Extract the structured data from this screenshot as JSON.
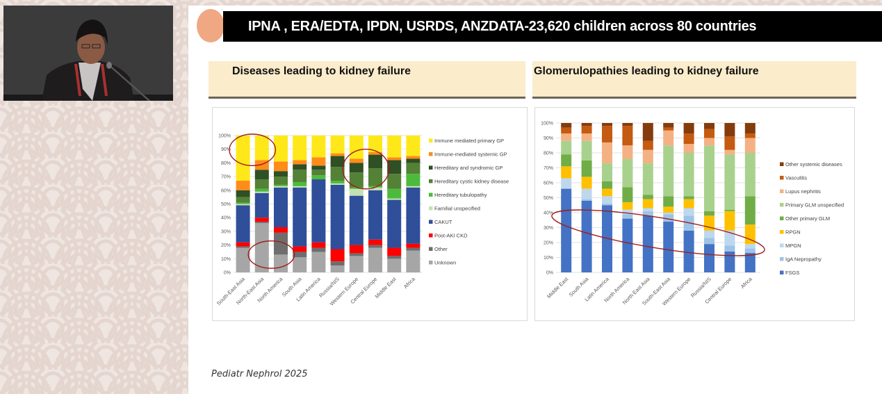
{
  "slide": {
    "title": "IPNA , ERA/EDTA, IPDN, USRDS, ANZDATA-23,620 children across 80  countries",
    "left_heading": "Diseases leading to kidney failure",
    "right_heading": "Glomerulopathies leading to kidney failure",
    "citation": "Pediatr Nephrol 2025"
  },
  "video_inset": {
    "description": "Speaker at podium with microphone"
  },
  "colors": {
    "title_bar": "#000000",
    "title_dot": "#f0a882",
    "subhead_bg": "#fbeccb",
    "annotation_ellipse": "#a01c1c"
  },
  "chart_data": [
    {
      "type": "bar",
      "stacked": true,
      "normalized": true,
      "title": "Diseases leading to kidney failure",
      "xlabel": "",
      "ylabel": "",
      "ylim": [
        0,
        100
      ],
      "yticks": [
        "0%",
        "10%",
        "20%",
        "30%",
        "40%",
        "50%",
        "60%",
        "70%",
        "80%",
        "90%",
        "100%"
      ],
      "grid": true,
      "legend_position": "right",
      "categories": [
        "South-East Asia",
        "North-East Asia",
        "North America",
        "South Asia",
        "Latin America",
        "Russia/NIS",
        "Western Europe",
        "Central Europe",
        "Middle East",
        "Africa"
      ],
      "series": [
        {
          "name": "Unknown",
          "color": "#a6a6a6",
          "values": [
            18,
            36,
            13,
            11,
            15,
            5,
            12,
            18,
            10,
            16
          ]
        },
        {
          "name": "Other",
          "color": "#6e6e6e",
          "values": [
            1,
            1,
            16,
            4,
            3,
            3,
            2,
            2,
            2,
            2
          ]
        },
        {
          "name": "Post-AKI CKD",
          "color": "#ff0000",
          "values": [
            3,
            3,
            4,
            4,
            4,
            9,
            6,
            4,
            6,
            3
          ]
        },
        {
          "name": "CAKUT",
          "color": "#2f4f9a",
          "values": [
            27,
            18,
            29,
            43,
            46,
            47,
            36,
            36,
            35,
            41
          ]
        },
        {
          "name": "Familial unspecified",
          "color": "#c5e0b4",
          "values": [
            1,
            1,
            1,
            1,
            0,
            1,
            5,
            2,
            1,
            1
          ]
        },
        {
          "name": "Hereditary tubulopathy",
          "color": "#4cbb3c",
          "values": [
            1,
            2,
            1,
            3,
            3,
            2,
            1,
            1,
            7,
            9
          ]
        },
        {
          "name": "Hereditary cystic kidney disease",
          "color": "#538135",
          "values": [
            4,
            7,
            6,
            9,
            4,
            10,
            11,
            13,
            11,
            8
          ]
        },
        {
          "name": "Hereditary and syndromic GP",
          "color": "#2f4f24",
          "values": [
            5,
            7,
            4,
            4,
            3,
            8,
            7,
            10,
            10,
            3
          ]
        },
        {
          "name": "Immune-mediated systemic GP",
          "color": "#ff8c1a",
          "values": [
            7,
            7,
            7,
            3,
            6,
            2,
            3,
            2,
            2,
            2
          ]
        },
        {
          "name": "Immune mediated primary  GP",
          "color": "#ffe81a",
          "values": [
            33,
            18,
            19,
            18,
            16,
            13,
            17,
            12,
            16,
            15
          ]
        }
      ],
      "annotations": [
        {
          "type": "ellipse",
          "around": [
            "South-East Asia",
            "North-East Asia"
          ],
          "range": [
            79,
            100
          ]
        },
        {
          "type": "ellipse",
          "around": [
            "North-East Asia",
            "North America"
          ],
          "range": [
            4,
            22
          ]
        },
        {
          "type": "ellipse",
          "around": [
            "Western Europe",
            "Central Europe"
          ],
          "range": [
            62,
            89
          ]
        }
      ]
    },
    {
      "type": "bar",
      "stacked": true,
      "normalized": true,
      "title": "Glomerulopathies leading to kidney failure",
      "xlabel": "",
      "ylabel": "",
      "ylim": [
        0,
        100
      ],
      "yticks": [
        "0%",
        "10%",
        "20%",
        "30%",
        "40%",
        "50%",
        "60%",
        "70%",
        "80%",
        "90%",
        "100%"
      ],
      "grid": true,
      "legend_position": "right",
      "categories": [
        "Middle East",
        "South Asia",
        "Latin America",
        "North America",
        "North East Asia",
        "South-East Asia",
        "Western Europe",
        "Russia/NIS",
        "Central Europe",
        "Africa"
      ],
      "series": [
        {
          "name": "FSGS",
          "color": "#4472c4",
          "values": [
            56,
            48,
            45,
            36,
            38,
            34,
            28,
            19,
            14,
            13
          ]
        },
        {
          "name": "IgA Nepropathy",
          "color": "#9dc3e6",
          "values": [
            0,
            1,
            1,
            3,
            3,
            5,
            10,
            4,
            4,
            3
          ]
        },
        {
          "name": "MPGN",
          "color": "#bdd7ee",
          "values": [
            7,
            7,
            5,
            3,
            2,
            1,
            5,
            5,
            10,
            3
          ]
        },
        {
          "name": "RPGN",
          "color": "#ffc000",
          "values": [
            8,
            8,
            5,
            5,
            6,
            4,
            6,
            10,
            13,
            13
          ]
        },
        {
          "name": "Other primary GLM",
          "color": "#70ad47",
          "values": [
            8,
            11,
            5,
            10,
            3,
            7,
            2,
            3,
            1,
            19
          ]
        },
        {
          "name": "Primary GLM unspecified",
          "color": "#a9d18e",
          "values": [
            9,
            13,
            12,
            19,
            21,
            34,
            29,
            44,
            37,
            29
          ]
        },
        {
          "name": "Lupus nephritis",
          "color": "#f4b183",
          "values": [
            5,
            5,
            14,
            9,
            9,
            10,
            6,
            5,
            3,
            10
          ]
        },
        {
          "name": "Vasculitis",
          "color": "#c55a11",
          "values": [
            4,
            5,
            11,
            13,
            6,
            2,
            7,
            6,
            9,
            3
          ]
        },
        {
          "name": "Other systemic diseases",
          "color": "#843c0c",
          "values": [
            3,
            2,
            2,
            2,
            12,
            3,
            7,
            4,
            9,
            7
          ]
        }
      ],
      "annotations": [
        {
          "type": "ellipse",
          "around": [
            "Middle East",
            "Africa"
          ],
          "diagonal": true,
          "range": [
            5,
            48
          ]
        }
      ]
    }
  ]
}
